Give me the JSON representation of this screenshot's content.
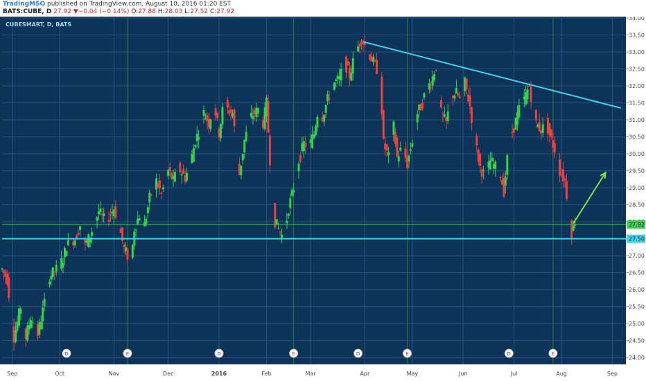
{
  "header": {
    "brand": "TradingMSO",
    "published": " published on TradingView.com, August 10, 2016 01:20 EST",
    "symbol": "BATS:CUBE, D",
    "last": " 27.92",
    "change_arrow": "▼",
    "change": "−0.04 (−0.14%)",
    "o_label": "O:",
    "o_value": "27.88",
    "h_label": "H:",
    "h_value": "28.03",
    "l_label": "L:",
    "l_value": "27.52",
    "c_label": "C:",
    "c_value": "27.92"
  },
  "colors": {
    "background": "#0e3358",
    "up": "#37d14a",
    "down": "#f0403e",
    "trendline": "#3fd3e6",
    "arrow": "#7ee04a",
    "grid": "#28557e",
    "vline": "#2f7a4a"
  },
  "chart_data": {
    "type": "candlestick",
    "title": "CUBESMART, D, BATS",
    "ylim": [
      23.8,
      34.0
    ],
    "y_ticks": [
      "34.00",
      "33.50",
      "33.00",
      "32.50",
      "32.00",
      "31.50",
      "31.00",
      "30.50",
      "30.00",
      "29.50",
      "29.00",
      "28.50",
      "28.00",
      "27.50",
      "27.00",
      "26.50",
      "26.00",
      "25.50",
      "25.00",
      "24.50",
      "24.00"
    ],
    "x_labels": [
      {
        "label": "Sep",
        "day": 6
      },
      {
        "label": "Oct",
        "day": 34
      },
      {
        "label": "Nov",
        "day": 66
      },
      {
        "label": "Dec",
        "day": 98
      },
      {
        "label": "2016",
        "day": 128
      },
      {
        "label": "Feb",
        "day": 156
      },
      {
        "label": "Mar",
        "day": 182
      },
      {
        "label": "Apr",
        "day": 214
      },
      {
        "label": "May",
        "day": 242
      },
      {
        "label": "Jun",
        "day": 272
      },
      {
        "label": "Jul",
        "day": 302
      },
      {
        "label": "Aug",
        "day": 330
      },
      {
        "label": "Sep",
        "day": 360
      }
    ],
    "event_markers": [
      {
        "label": "D",
        "day": 38
      },
      {
        "label": "E",
        "day": 74
      },
      {
        "label": "D",
        "day": 128
      },
      {
        "label": "E",
        "day": 172
      },
      {
        "label": "D",
        "day": 210
      },
      {
        "label": "E",
        "day": 239
      },
      {
        "label": "D",
        "day": 299
      },
      {
        "label": "E",
        "day": 325
      }
    ],
    "vertical_lines_days": [
      74,
      172,
      239,
      325
    ],
    "horizontal_lines": [
      {
        "value": 27.92,
        "label": "27.92",
        "style": "price"
      },
      {
        "value": 27.5,
        "label": "27.50",
        "style": "support"
      }
    ],
    "trendline": {
      "from": {
        "day": 213,
        "value": 33.3
      },
      "to": {
        "day": 365,
        "value": 31.35
      }
    },
    "arrow": {
      "from": {
        "day": 337,
        "value": 27.95
      },
      "to": {
        "day": 356,
        "value": 29.45
      }
    },
    "anchors": [
      [
        0,
        26.6
      ],
      [
        3,
        26.3
      ],
      [
        7,
        24.6
      ],
      [
        11,
        25.5
      ],
      [
        14,
        24.6
      ],
      [
        17,
        25.2
      ],
      [
        21,
        24.7
      ],
      [
        25,
        25.6
      ],
      [
        28,
        26.4
      ],
      [
        32,
        26.6
      ],
      [
        36,
        26.9
      ],
      [
        38,
        27.3
      ],
      [
        43,
        27.5
      ],
      [
        46,
        27.9
      ],
      [
        49,
        27.3
      ],
      [
        52,
        27.6
      ],
      [
        57,
        28.3
      ],
      [
        61,
        28.0
      ],
      [
        66,
        28.4
      ],
      [
        69,
        27.9
      ],
      [
        72,
        27.2
      ],
      [
        76,
        26.8
      ],
      [
        78,
        27.8
      ],
      [
        81,
        28.2
      ],
      [
        84,
        27.9
      ],
      [
        87,
        28.7
      ],
      [
        91,
        29.2
      ],
      [
        94,
        28.8
      ],
      [
        98,
        29.5
      ],
      [
        101,
        29.2
      ],
      [
        104,
        29.6
      ],
      [
        108,
        29.3
      ],
      [
        111,
        29.7
      ],
      [
        114,
        30.4
      ],
      [
        117,
        30.8
      ],
      [
        119,
        31.2
      ],
      [
        122,
        30.9
      ],
      [
        125,
        31.5
      ],
      [
        128,
        30.6
      ],
      [
        131,
        31.6
      ],
      [
        133,
        31.3
      ],
      [
        136,
        31.2
      ],
      [
        140,
        29.4
      ],
      [
        143,
        30.4
      ],
      [
        147,
        31.1
      ],
      [
        151,
        31.3
      ],
      [
        154,
        30.9
      ],
      [
        156,
        31.5
      ],
      [
        159,
        29.0
      ],
      [
        161,
        28.0
      ],
      [
        164,
        27.7
      ],
      [
        166,
        27.5
      ],
      [
        169,
        28.4
      ],
      [
        172,
        29.0
      ],
      [
        175,
        29.8
      ],
      [
        178,
        30.3
      ],
      [
        181,
        30.2
      ],
      [
        184,
        30.6
      ],
      [
        186,
        31.2
      ],
      [
        189,
        31.1
      ],
      [
        192,
        31.6
      ],
      [
        196,
        32.1
      ],
      [
        199,
        32.2
      ],
      [
        202,
        32.7
      ],
      [
        205,
        32.3
      ],
      [
        208,
        32.9
      ],
      [
        212,
        33.4
      ],
      [
        214,
        33.2
      ],
      [
        217,
        32.9
      ],
      [
        220,
        32.6
      ],
      [
        223,
        32.3
      ],
      [
        225,
        30.3
      ],
      [
        228,
        29.9
      ],
      [
        231,
        30.8
      ],
      [
        233,
        29.9
      ],
      [
        236,
        30.2
      ],
      [
        239,
        29.7
      ],
      [
        242,
        30.4
      ],
      [
        245,
        31.2
      ],
      [
        248,
        31.5
      ],
      [
        250,
        31.9
      ],
      [
        253,
        32.1
      ],
      [
        256,
        32.6
      ],
      [
        259,
        31.2
      ],
      [
        262,
        30.9
      ],
      [
        265,
        31.7
      ],
      [
        268,
        31.8
      ],
      [
        271,
        31.5
      ],
      [
        273,
        32.1
      ],
      [
        276,
        31.4
      ],
      [
        279,
        30.4
      ],
      [
        282,
        29.6
      ],
      [
        285,
        29.3
      ],
      [
        288,
        29.8
      ],
      [
        291,
        29.6
      ],
      [
        294,
        29.4
      ],
      [
        296,
        28.9
      ],
      [
        299,
        30.3
      ],
      [
        302,
        30.8
      ],
      [
        305,
        31.3
      ],
      [
        308,
        31.6
      ],
      [
        311,
        32.0
      ],
      [
        313,
        31.4
      ],
      [
        315,
        30.9
      ],
      [
        318,
        30.7
      ],
      [
        321,
        30.9
      ],
      [
        324,
        30.4
      ],
      [
        327,
        30.0
      ],
      [
        329,
        29.5
      ],
      [
        332,
        29.2
      ],
      [
        334,
        28.4
      ],
      [
        336,
        27.7
      ],
      [
        338,
        27.92
      ]
    ]
  }
}
